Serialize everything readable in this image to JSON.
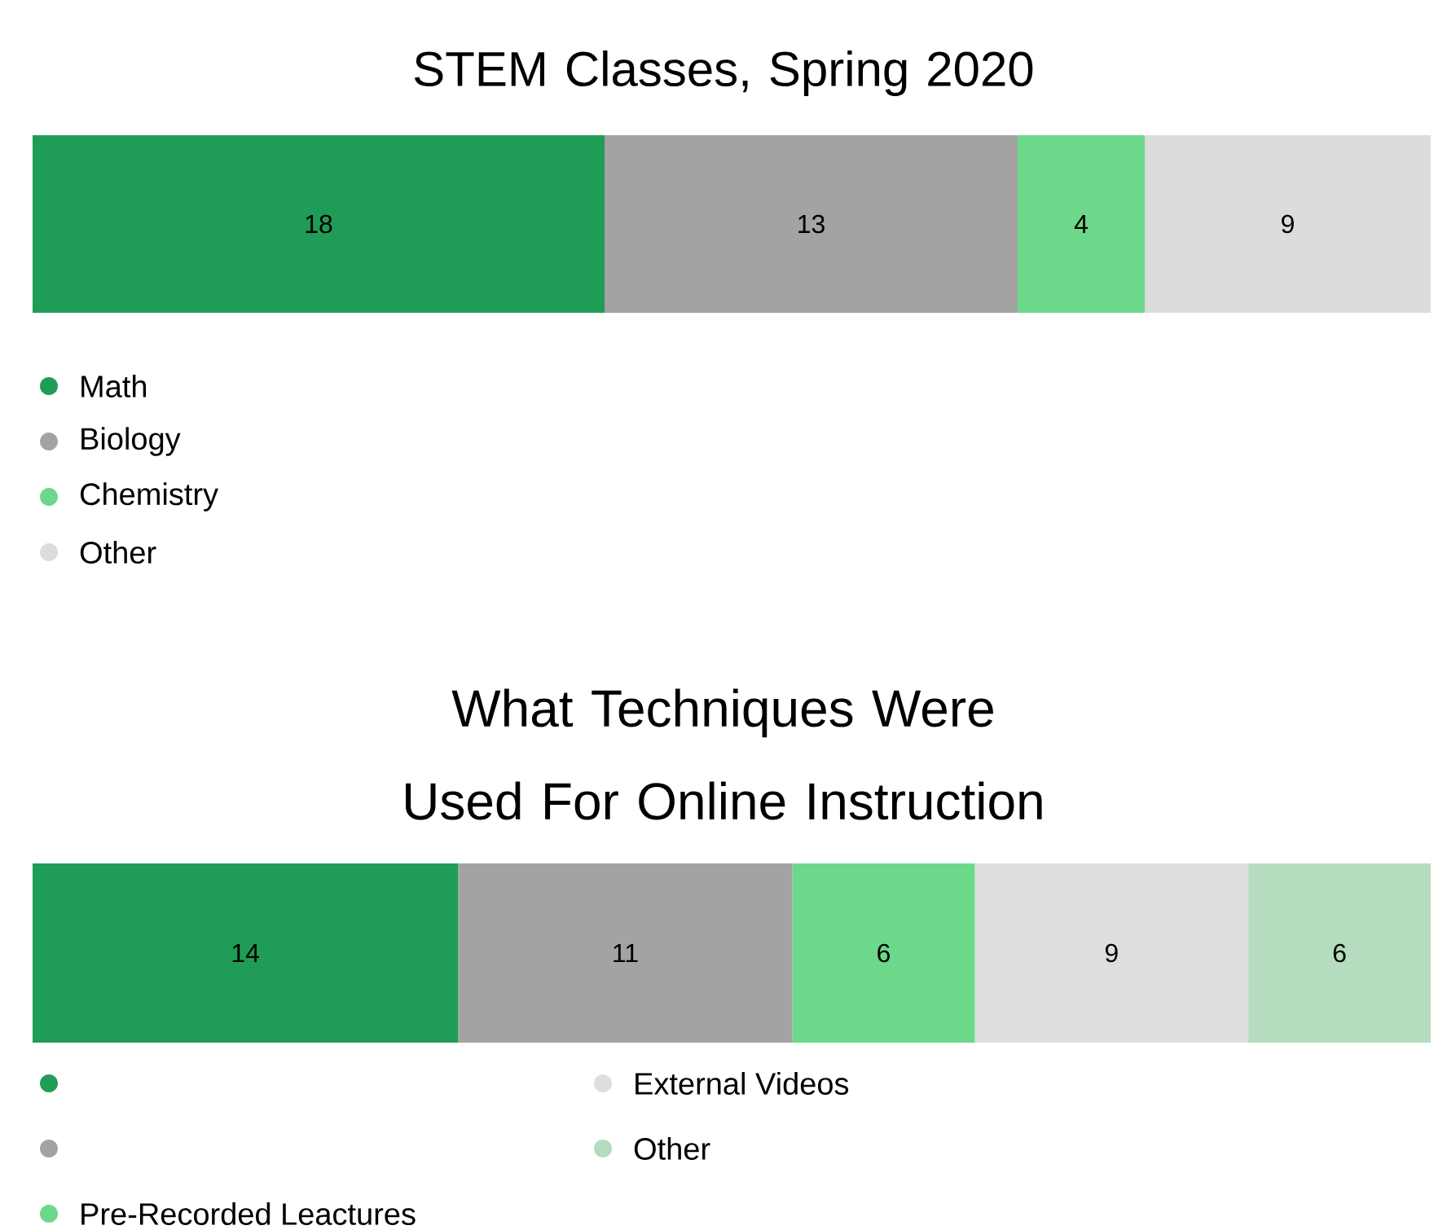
{
  "chart_data": [
    {
      "type": "bar",
      "orientation": "horizontal",
      "stacked": true,
      "title": "STEM Classes, Spring 2020",
      "categories": [
        null
      ],
      "data_labels": true,
      "legend": "bottom left",
      "series": [
        {
          "name": "Math",
          "color": "#1f9d57",
          "values": [
            18
          ]
        },
        {
          "name": "Biology",
          "color": "#a3a3a3",
          "values": [
            13
          ]
        },
        {
          "name": "Chemistry",
          "color": "#6cd889",
          "values": [
            4
          ]
        },
        {
          "name": "Other",
          "color": "#dcdcdc",
          "values": [
            9
          ]
        }
      ]
    },
    {
      "type": "bar",
      "orientation": "horizontal",
      "stacked": true,
      "title": "What Techniques Were Used For Online Instruction",
      "categories": [
        null
      ],
      "data_labels": true,
      "legend": "bottom left",
      "series": [
        {
          "color": "#1f9d57",
          "values": [
            14
          ]
        },
        {
          "color": "#a3a3a3",
          "values": [
            11
          ]
        },
        {
          "name": "Pre-Recorded Leactures",
          "color": "#6cd889",
          "values": [
            6
          ]
        },
        {
          "name": "External Videos",
          "color": "#dedede",
          "values": [
            9
          ]
        },
        {
          "name": "Other",
          "color": "#b5dcbf",
          "values": [
            6
          ]
        }
      ]
    }
  ]
}
